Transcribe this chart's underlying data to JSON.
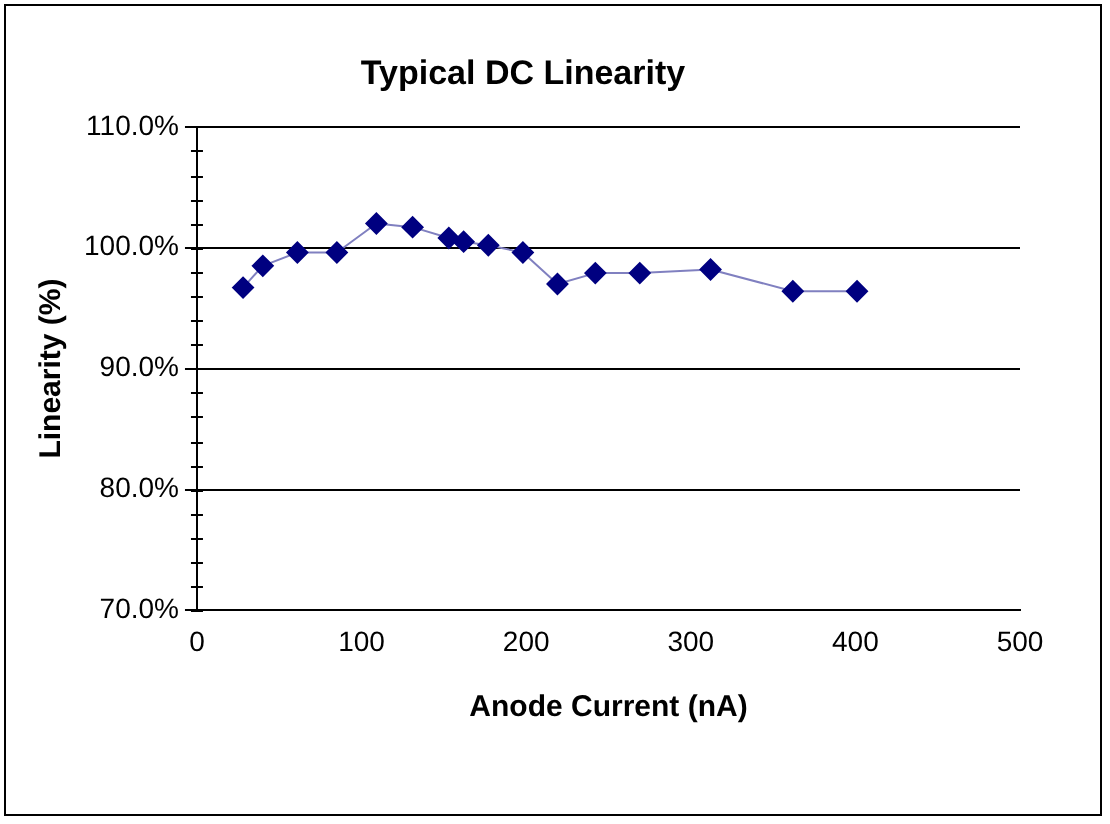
{
  "chart_data": {
    "type": "line",
    "title": "Typical DC Linearity",
    "xlabel": "Anode Current (nA)",
    "ylabel": "Linearity (%)",
    "x": [
      28,
      40,
      61,
      85,
      109,
      131,
      153,
      162,
      177,
      198,
      219,
      242,
      269,
      312,
      362,
      401
    ],
    "series": [
      {
        "color": "#000080",
        "values": [
          96.7,
          98.5,
          99.6,
          99.6,
          102.0,
          101.7,
          100.8,
          100.5,
          100.2,
          99.6,
          97.0,
          97.9,
          97.9,
          98.2,
          96.4,
          96.4
        ]
      }
    ],
    "xlim": [
      0,
      500
    ],
    "xticks": [
      0,
      100,
      200,
      300,
      400,
      500
    ],
    "ylim": [
      70,
      110
    ],
    "yticks": [
      {
        "value": 70,
        "label": "70.0%"
      },
      {
        "value": 80,
        "label": "80.0%"
      },
      {
        "value": 90,
        "label": "90.0%"
      },
      {
        "value": 100,
        "label": "100.0%"
      },
      {
        "value": 110,
        "label": "110.0%"
      }
    ],
    "grid": "y",
    "legend": false,
    "marker": "diamond",
    "line_style": "solid"
  }
}
